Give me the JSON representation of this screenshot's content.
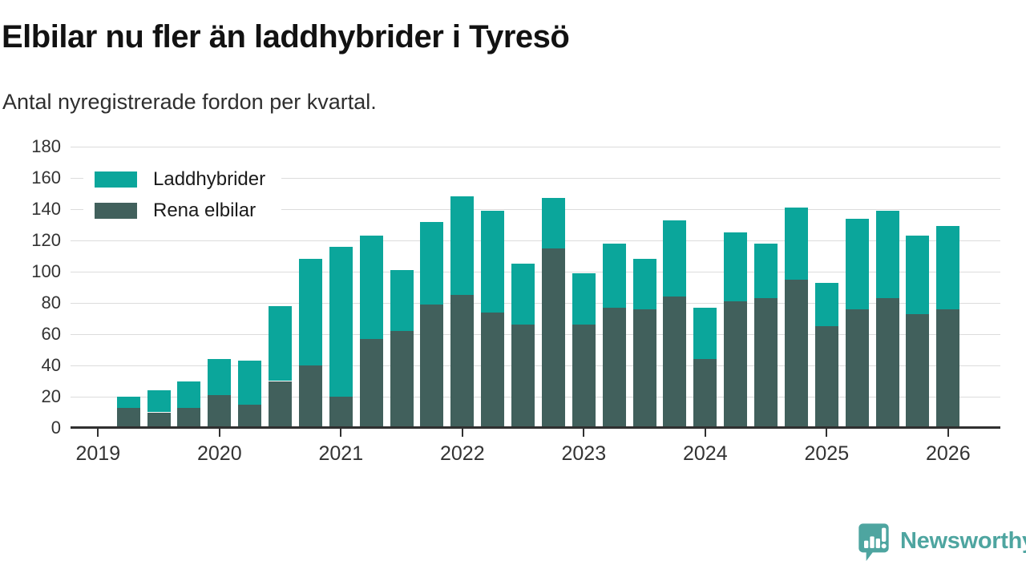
{
  "title": "Elbilar nu fler än laddhybrider i Tyresö",
  "subtitle": "Antal nyregistrerade fordon per kvartal.",
  "logo": {
    "text": "Newsworthy"
  },
  "colors": {
    "laddhybrider": "#0ba69b",
    "rena_elbilar": "#41605c",
    "logo_teal": "#4ea5a0",
    "grid": "#dcdcdc",
    "axis": "#303030",
    "title_text": "#121212",
    "body_text": "#2e2e2e"
  },
  "chart_data": {
    "type": "bar",
    "stacked": true,
    "title": "Elbilar nu fler än laddhybrider i Tyresö",
    "subtitle": "Antal nyregistrerade fordon per kvartal.",
    "xlabel": "",
    "ylabel": "",
    "ylim": [
      0,
      180
    ],
    "y_ticks": [
      0,
      20,
      40,
      60,
      80,
      100,
      120,
      140,
      160,
      180
    ],
    "grid": true,
    "legend_position": "top-left",
    "x_year_labels": [
      "2019",
      "2020",
      "2021",
      "2022",
      "2023",
      "2024",
      "2025",
      "2026"
    ],
    "categories": [
      "2019 K2",
      "2019 K3",
      "2019 K4",
      "2020 K1",
      "2020 K2",
      "2020 K3",
      "2020 K4",
      "2021 K1",
      "2021 K2",
      "2021 K3",
      "2021 K4",
      "2022 K1",
      "2022 K2",
      "2022 K3",
      "2022 K4",
      "2023 K1",
      "2023 K2",
      "2023 K3",
      "2023 K4",
      "2024 K1",
      "2024 K2",
      "2024 K3",
      "2024 K4",
      "2025 K1",
      "2025 K2",
      "2025 K3",
      "2025 K4",
      "2026 K1"
    ],
    "series": [
      {
        "name": "Laddhybrider",
        "color": "#0ba69b",
        "values": [
          7,
          14,
          17,
          23,
          28,
          48,
          68,
          96,
          66,
          39,
          53,
          63,
          65,
          39,
          32,
          33,
          41,
          32,
          49,
          33,
          44,
          35,
          46,
          28,
          58,
          56,
          50,
          53
        ]
      },
      {
        "name": "Rena elbilar",
        "color": "#41605c",
        "values": [
          13,
          10,
          13,
          21,
          15,
          30,
          40,
          20,
          57,
          62,
          79,
          85,
          74,
          66,
          115,
          66,
          77,
          76,
          84,
          44,
          81,
          83,
          95,
          65,
          76,
          83,
          73,
          76
        ]
      }
    ],
    "totals": [
      20,
      24,
      30,
      44,
      43,
      78,
      108,
      116,
      123,
      101,
      132,
      148,
      139,
      105,
      147,
      99,
      118,
      108,
      133,
      77,
      125,
      118,
      141,
      93,
      134,
      139,
      123,
      129
    ]
  }
}
